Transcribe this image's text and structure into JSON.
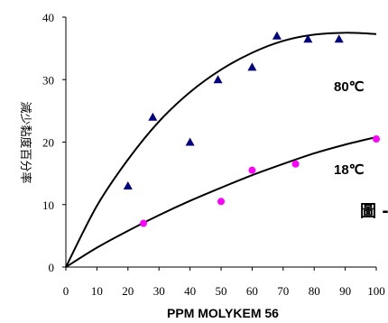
{
  "chart_data": {
    "type": "scatter",
    "xlabel": "PPM MOLYKEM 56",
    "ylabel": "減少黏度百分率",
    "xlim": [
      0,
      100
    ],
    "ylim": [
      0,
      40
    ],
    "x_ticks": [
      "0",
      "10",
      "20",
      "30",
      "40",
      "50",
      "60",
      "70",
      "80",
      "90",
      "100"
    ],
    "y_ticks": [
      "0",
      "10",
      "20",
      "30",
      "40"
    ],
    "grid": false,
    "figure_label": "圖 -",
    "series": [
      {
        "name": "80℃",
        "marker": "triangle",
        "color": "#000080",
        "points": [
          [
            20,
            13
          ],
          [
            28,
            24
          ],
          [
            40,
            20
          ],
          [
            49,
            30
          ],
          [
            60,
            32
          ],
          [
            68,
            37
          ],
          [
            78,
            36.5
          ],
          [
            88,
            36.5
          ]
        ],
        "trend": [
          [
            0,
            0
          ],
          [
            10,
            9.8
          ],
          [
            20,
            17.2
          ],
          [
            30,
            23.3
          ],
          [
            40,
            28.0
          ],
          [
            50,
            31.6
          ],
          [
            60,
            34.3
          ],
          [
            70,
            36.2
          ],
          [
            80,
            37.2
          ],
          [
            90,
            37.5
          ],
          [
            100,
            37.3
          ]
        ]
      },
      {
        "name": "18℃",
        "marker": "circle",
        "color": "#ff00ff",
        "points": [
          [
            25,
            7
          ],
          [
            50,
            10.5
          ],
          [
            60,
            15.5
          ],
          [
            74,
            16.5
          ],
          [
            100,
            20.5
          ]
        ],
        "trend": [
          [
            0,
            0
          ],
          [
            10,
            3.1
          ],
          [
            20,
            5.8
          ],
          [
            30,
            8.3
          ],
          [
            40,
            10.6
          ],
          [
            50,
            12.7
          ],
          [
            60,
            14.7
          ],
          [
            70,
            16.5
          ],
          [
            80,
            18.2
          ],
          [
            90,
            19.6
          ],
          [
            100,
            20.8
          ]
        ]
      }
    ]
  }
}
